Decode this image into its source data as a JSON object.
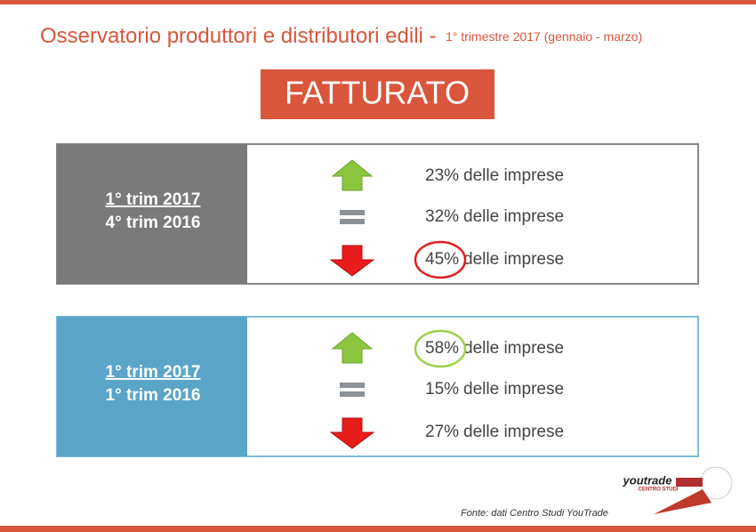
{
  "header": {
    "title": "Osservatorio produttori e distributori edili -",
    "subtitle": "1° trimestre 2017 (gennaio - marzo)"
  },
  "heading": "FATTURATO",
  "panels": [
    {
      "period_a": "1° trim 2017",
      "period_b": "4° trim 2016",
      "rows": [
        {
          "percent": "23%",
          "text": "delle imprese"
        },
        {
          "percent": "32%",
          "text": "delle imprese"
        },
        {
          "percent": "45%",
          "text": "delle imprese"
        }
      ]
    },
    {
      "period_a": "1° trim 2017",
      "period_b": "1° trim 2016",
      "rows": [
        {
          "percent": "58%",
          "text": "delle imprese"
        },
        {
          "percent": "15%",
          "text": "delle imprese"
        },
        {
          "percent": "27%",
          "text": "delle imprese"
        }
      ]
    }
  ],
  "logo": {
    "name": "youtrade",
    "tagline": "CENTRO STUDI"
  },
  "source": "Fonte: dati Centro Studi YouTrade"
}
